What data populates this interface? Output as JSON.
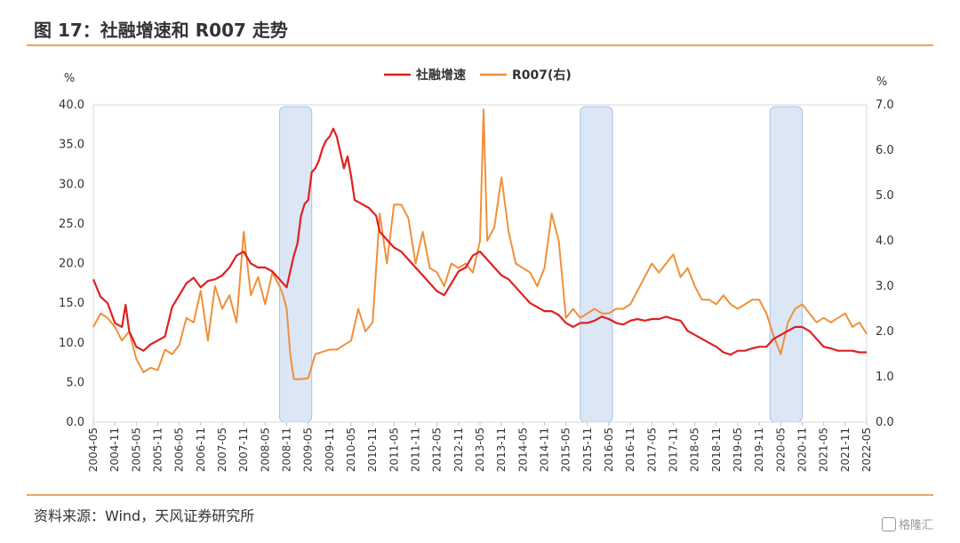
{
  "header": {
    "title": "图 17：社融增速和 R007 走势"
  },
  "footer": {
    "source": "资料来源：Wind，天风证券研究所",
    "watermark": "格隆汇"
  },
  "colors": {
    "series1": "#e02020",
    "series2": "#f0903a",
    "shade": "#dbe7f5",
    "shade_border": "#a9c4e4",
    "rule": "#e8a65a"
  },
  "chart_data": {
    "type": "line",
    "title": "",
    "ylabel_left": "%",
    "ylabel_right": "%",
    "ylim_left": [
      0,
      40
    ],
    "ylim_right": [
      0,
      7
    ],
    "yticks_left": [
      "0.0",
      "5.0",
      "10.0",
      "15.0",
      "20.0",
      "25.0",
      "30.0",
      "35.0",
      "40.0"
    ],
    "yticks_right": [
      "0.0",
      "1.0",
      "2.0",
      "3.0",
      "4.0",
      "5.0",
      "6.0",
      "7.0"
    ],
    "x_ticks": [
      "2004-05",
      "2004-11",
      "2005-05",
      "2005-11",
      "2006-05",
      "2006-11",
      "2007-05",
      "2007-11",
      "2008-05",
      "2008-11",
      "2009-05",
      "2009-11",
      "2010-05",
      "2010-11",
      "2011-05",
      "2011-11",
      "2012-05",
      "2012-11",
      "2013-05",
      "2013-11",
      "2014-05",
      "2014-11",
      "2015-05",
      "2015-11",
      "2016-05",
      "2016-11",
      "2017-05",
      "2017-11",
      "2018-05",
      "2018-11",
      "2019-05",
      "2019-11",
      "2020-05",
      "2020-11",
      "2021-05",
      "2021-11",
      "2022-05"
    ],
    "shaded_periods": [
      [
        "2008-09",
        "2009-06"
      ],
      [
        "2015-09",
        "2016-06"
      ],
      [
        "2020-02",
        "2020-11"
      ]
    ],
    "legend_position": "top-center",
    "grid": false,
    "series": [
      {
        "name": "社融增速",
        "axis": "left",
        "points": [
          [
            "2004-05",
            18.0
          ],
          [
            "2004-07",
            15.8
          ],
          [
            "2004-09",
            15.0
          ],
          [
            "2004-11",
            12.5
          ],
          [
            "2005-01",
            12.0
          ],
          [
            "2005-02",
            14.8
          ],
          [
            "2005-03",
            11.5
          ],
          [
            "2005-05",
            9.5
          ],
          [
            "2005-07",
            9.0
          ],
          [
            "2005-09",
            9.8
          ],
          [
            "2005-11",
            10.3
          ],
          [
            "2006-01",
            10.8
          ],
          [
            "2006-03",
            14.5
          ],
          [
            "2006-05",
            16.0
          ],
          [
            "2006-07",
            17.5
          ],
          [
            "2006-09",
            18.2
          ],
          [
            "2006-11",
            17.0
          ],
          [
            "2007-01",
            17.8
          ],
          [
            "2007-03",
            18.0
          ],
          [
            "2007-05",
            18.5
          ],
          [
            "2007-07",
            19.5
          ],
          [
            "2007-09",
            21.0
          ],
          [
            "2007-11",
            21.5
          ],
          [
            "2008-01",
            20.0
          ],
          [
            "2008-03",
            19.5
          ],
          [
            "2008-05",
            19.5
          ],
          [
            "2008-07",
            19.0
          ],
          [
            "2008-09",
            18.0
          ],
          [
            "2008-11",
            17.0
          ],
          [
            "2008-12",
            19.0
          ],
          [
            "2009-01",
            21.0
          ],
          [
            "2009-02",
            22.5
          ],
          [
            "2009-03",
            26.0
          ],
          [
            "2009-04",
            27.5
          ],
          [
            "2009-05",
            28.0
          ],
          [
            "2009-06",
            31.5
          ],
          [
            "2009-07",
            32.0
          ],
          [
            "2009-08",
            33.0
          ],
          [
            "2009-09",
            34.5
          ],
          [
            "2009-10",
            35.5
          ],
          [
            "2009-11",
            36.0
          ],
          [
            "2009-12",
            37.0
          ],
          [
            "2010-01",
            36.0
          ],
          [
            "2010-02",
            34.0
          ],
          [
            "2010-03",
            32.0
          ],
          [
            "2010-04",
            33.5
          ],
          [
            "2010-05",
            31.0
          ],
          [
            "2010-06",
            28.0
          ],
          [
            "2010-08",
            27.5
          ],
          [
            "2010-10",
            27.0
          ],
          [
            "2010-12",
            26.0
          ],
          [
            "2011-01",
            24.0
          ],
          [
            "2011-03",
            23.0
          ],
          [
            "2011-05",
            22.0
          ],
          [
            "2011-07",
            21.5
          ],
          [
            "2011-09",
            20.5
          ],
          [
            "2011-11",
            19.5
          ],
          [
            "2012-01",
            18.5
          ],
          [
            "2012-03",
            17.5
          ],
          [
            "2012-05",
            16.5
          ],
          [
            "2012-07",
            16.0
          ],
          [
            "2012-09",
            17.5
          ],
          [
            "2012-11",
            19.0
          ],
          [
            "2013-01",
            19.5
          ],
          [
            "2013-03",
            21.0
          ],
          [
            "2013-05",
            21.5
          ],
          [
            "2013-07",
            20.5
          ],
          [
            "2013-09",
            19.5
          ],
          [
            "2013-11",
            18.5
          ],
          [
            "2014-01",
            18.0
          ],
          [
            "2014-03",
            17.0
          ],
          [
            "2014-05",
            16.0
          ],
          [
            "2014-07",
            15.0
          ],
          [
            "2014-09",
            14.5
          ],
          [
            "2014-11",
            14.0
          ],
          [
            "2015-01",
            14.0
          ],
          [
            "2015-03",
            13.5
          ],
          [
            "2015-05",
            12.5
          ],
          [
            "2015-07",
            12.0
          ],
          [
            "2015-09",
            12.5
          ],
          [
            "2015-11",
            12.5
          ],
          [
            "2016-01",
            12.8
          ],
          [
            "2016-03",
            13.3
          ],
          [
            "2016-05",
            13.0
          ],
          [
            "2016-07",
            12.5
          ],
          [
            "2016-09",
            12.3
          ],
          [
            "2016-11",
            12.8
          ],
          [
            "2017-01",
            13.0
          ],
          [
            "2017-03",
            12.8
          ],
          [
            "2017-05",
            13.0
          ],
          [
            "2017-07",
            13.0
          ],
          [
            "2017-09",
            13.3
          ],
          [
            "2017-11",
            13.0
          ],
          [
            "2018-01",
            12.8
          ],
          [
            "2018-03",
            11.5
          ],
          [
            "2018-05",
            11.0
          ],
          [
            "2018-07",
            10.5
          ],
          [
            "2018-09",
            10.0
          ],
          [
            "2018-11",
            9.5
          ],
          [
            "2019-01",
            8.8
          ],
          [
            "2019-03",
            8.5
          ],
          [
            "2019-05",
            9.0
          ],
          [
            "2019-07",
            9.0
          ],
          [
            "2019-09",
            9.3
          ],
          [
            "2019-11",
            9.5
          ],
          [
            "2020-01",
            9.5
          ],
          [
            "2020-03",
            10.5
          ],
          [
            "2020-05",
            11.0
          ],
          [
            "2020-07",
            11.5
          ],
          [
            "2020-09",
            12.0
          ],
          [
            "2020-11",
            12.0
          ],
          [
            "2021-01",
            11.5
          ],
          [
            "2021-03",
            10.5
          ],
          [
            "2021-05",
            9.5
          ],
          [
            "2021-07",
            9.3
          ],
          [
            "2021-09",
            9.0
          ],
          [
            "2021-11",
            9.0
          ],
          [
            "2022-01",
            9.0
          ],
          [
            "2022-03",
            8.8
          ],
          [
            "2022-05",
            8.8
          ]
        ]
      },
      {
        "name": "R007(右)",
        "axis": "right",
        "points": [
          [
            "2004-05",
            2.1
          ],
          [
            "2004-07",
            2.4
          ],
          [
            "2004-09",
            2.3
          ],
          [
            "2004-11",
            2.1
          ],
          [
            "2005-01",
            1.8
          ],
          [
            "2005-03",
            2.0
          ],
          [
            "2005-05",
            1.4
          ],
          [
            "2005-07",
            1.1
          ],
          [
            "2005-09",
            1.2
          ],
          [
            "2005-11",
            1.15
          ],
          [
            "2006-01",
            1.6
          ],
          [
            "2006-03",
            1.5
          ],
          [
            "2006-05",
            1.7
          ],
          [
            "2006-07",
            2.3
          ],
          [
            "2006-09",
            2.2
          ],
          [
            "2006-11",
            2.9
          ],
          [
            "2007-01",
            1.8
          ],
          [
            "2007-03",
            3.0
          ],
          [
            "2007-05",
            2.5
          ],
          [
            "2007-07",
            2.8
          ],
          [
            "2007-09",
            2.2
          ],
          [
            "2007-11",
            4.2
          ],
          [
            "2008-01",
            2.8
          ],
          [
            "2008-03",
            3.2
          ],
          [
            "2008-05",
            2.6
          ],
          [
            "2008-07",
            3.3
          ],
          [
            "2008-09",
            3.0
          ],
          [
            "2008-10",
            2.8
          ],
          [
            "2008-11",
            2.5
          ],
          [
            "2008-12",
            1.5
          ],
          [
            "2009-01",
            0.95
          ],
          [
            "2009-03",
            0.95
          ],
          [
            "2009-05",
            0.97
          ],
          [
            "2009-07",
            1.5
          ],
          [
            "2009-09",
            1.55
          ],
          [
            "2009-11",
            1.6
          ],
          [
            "2010-01",
            1.6
          ],
          [
            "2010-03",
            1.7
          ],
          [
            "2010-05",
            1.8
          ],
          [
            "2010-07",
            2.5
          ],
          [
            "2010-09",
            2.0
          ],
          [
            "2010-11",
            2.2
          ],
          [
            "2011-01",
            4.6
          ],
          [
            "2011-03",
            3.5
          ],
          [
            "2011-05",
            4.8
          ],
          [
            "2011-07",
            4.8
          ],
          [
            "2011-09",
            4.5
          ],
          [
            "2011-11",
            3.5
          ],
          [
            "2012-01",
            4.2
          ],
          [
            "2012-03",
            3.4
          ],
          [
            "2012-05",
            3.3
          ],
          [
            "2012-07",
            3.0
          ],
          [
            "2012-09",
            3.5
          ],
          [
            "2012-11",
            3.4
          ],
          [
            "2013-01",
            3.5
          ],
          [
            "2013-03",
            3.3
          ],
          [
            "2013-05",
            4.0
          ],
          [
            "2013-06",
            6.9
          ],
          [
            "2013-07",
            4.0
          ],
          [
            "2013-09",
            4.3
          ],
          [
            "2013-11",
            5.4
          ],
          [
            "2014-01",
            4.2
          ],
          [
            "2014-03",
            3.5
          ],
          [
            "2014-05",
            3.4
          ],
          [
            "2014-07",
            3.3
          ],
          [
            "2014-09",
            3.0
          ],
          [
            "2014-11",
            3.4
          ],
          [
            "2015-01",
            4.6
          ],
          [
            "2015-03",
            4.0
          ],
          [
            "2015-05",
            2.3
          ],
          [
            "2015-07",
            2.5
          ],
          [
            "2015-09",
            2.3
          ],
          [
            "2015-11",
            2.4
          ],
          [
            "2016-01",
            2.5
          ],
          [
            "2016-03",
            2.4
          ],
          [
            "2016-05",
            2.4
          ],
          [
            "2016-07",
            2.5
          ],
          [
            "2016-09",
            2.5
          ],
          [
            "2016-11",
            2.6
          ],
          [
            "2017-01",
            2.9
          ],
          [
            "2017-03",
            3.2
          ],
          [
            "2017-05",
            3.5
          ],
          [
            "2017-07",
            3.3
          ],
          [
            "2017-09",
            3.5
          ],
          [
            "2017-11",
            3.7
          ],
          [
            "2018-01",
            3.2
          ],
          [
            "2018-03",
            3.4
          ],
          [
            "2018-05",
            3.0
          ],
          [
            "2018-07",
            2.7
          ],
          [
            "2018-09",
            2.7
          ],
          [
            "2018-11",
            2.6
          ],
          [
            "2019-01",
            2.8
          ],
          [
            "2019-03",
            2.6
          ],
          [
            "2019-05",
            2.5
          ],
          [
            "2019-07",
            2.6
          ],
          [
            "2019-09",
            2.7
          ],
          [
            "2019-11",
            2.7
          ],
          [
            "2020-01",
            2.4
          ],
          [
            "2020-03",
            1.9
          ],
          [
            "2020-05",
            1.5
          ],
          [
            "2020-07",
            2.2
          ],
          [
            "2020-09",
            2.5
          ],
          [
            "2020-11",
            2.6
          ],
          [
            "2021-01",
            2.4
          ],
          [
            "2021-03",
            2.2
          ],
          [
            "2021-05",
            2.3
          ],
          [
            "2021-07",
            2.2
          ],
          [
            "2021-09",
            2.3
          ],
          [
            "2021-11",
            2.4
          ],
          [
            "2022-01",
            2.1
          ],
          [
            "2022-03",
            2.2
          ],
          [
            "2022-05",
            1.95
          ]
        ]
      }
    ]
  }
}
